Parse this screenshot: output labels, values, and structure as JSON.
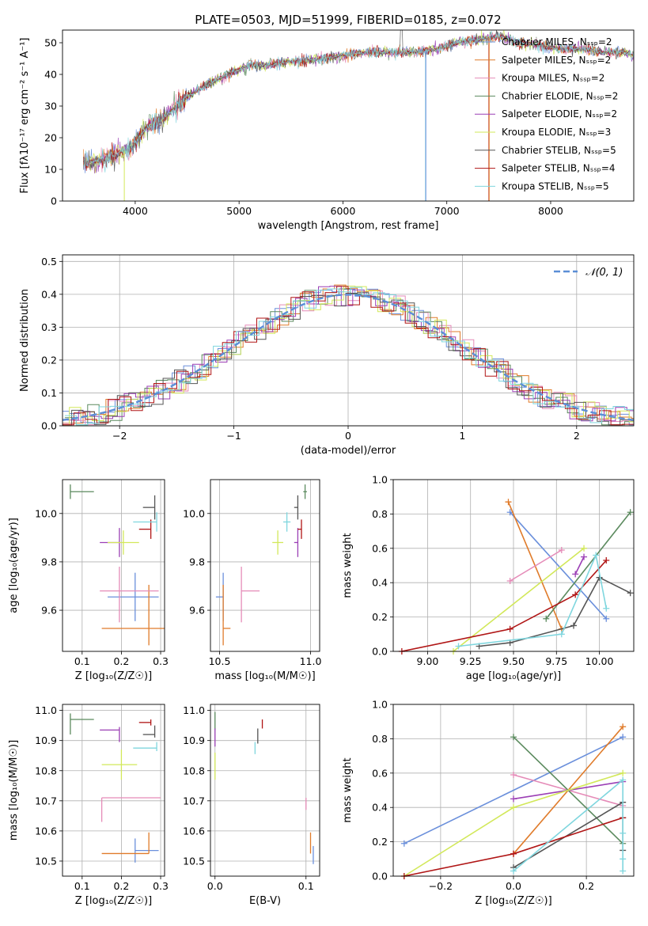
{
  "colors": [
    "#6a8fdb",
    "#e07b2a",
    "#e58bb8",
    "#5b8a5e",
    "#9b3fb5",
    "#d2e85a",
    "#555555",
    "#b01515",
    "#7fd6de"
  ],
  "chart_data": [
    {
      "type": "line",
      "id": "spectrum",
      "title": "PLATE=0503, MJD=51999, FIBERID=0185, z=0.072",
      "xlabel": "wavelength [Angstrom, rest frame]",
      "ylabel": "Flux [fλ10⁻¹⁷ erg cm⁻² s⁻¹ A⁻¹]",
      "xlim": [
        3300,
        8800
      ],
      "ylim": [
        0,
        54
      ],
      "xticks": [
        "4000",
        "5000",
        "6000",
        "7000",
        "8000"
      ],
      "yticks": [
        "0",
        "10",
        "20",
        "30",
        "40",
        "50"
      ],
      "legend": [
        "Chabrier MILES, Nₛₛₚ=2",
        "Salpeter MILES, Nₛₛₚ=2",
        "Kroupa MILES, Nₛₛₚ=2",
        "Chabrier ELODIE, Nₛₛₚ=2",
        "Salpeter ELODIE, Nₛₛₚ=2",
        "Kroupa ELODIE, Nₛₛₚ=3",
        "Chabrier STELIB, Nₛₛₚ=5",
        "Salpeter STELIB, Nₛₛₚ=4",
        "Kroupa STELIB, Nₛₛₚ=5"
      ],
      "continuum": {
        "x": [
          3500,
          3700,
          3900,
          4000,
          4100,
          4300,
          4500,
          4700,
          4900,
          5100,
          5300,
          5500,
          5800,
          6000,
          6200,
          6500,
          6700,
          6900,
          7100,
          7300,
          7500,
          7700,
          7900,
          8100,
          8300,
          8500,
          8700,
          8800
        ],
        "y": [
          12,
          13,
          16,
          18,
          23,
          27,
          33,
          37,
          40,
          43,
          43,
          44,
          45,
          46,
          47,
          47,
          47,
          48,
          50,
          51,
          52,
          50,
          49,
          48,
          48,
          47,
          47,
          46
        ]
      }
    },
    {
      "type": "histogram",
      "id": "residuals",
      "xlabel": "(data-model)/error",
      "ylabel": "Normed distribution",
      "xlim": [
        -2.5,
        2.5
      ],
      "ylim": [
        0,
        0.52
      ],
      "xticks": [
        "−2",
        "−1",
        "0",
        "1",
        "2"
      ],
      "yticks": [
        "0.0",
        "0.1",
        "0.2",
        "0.3",
        "0.4",
        "0.5"
      ],
      "legend": [
        "𝒩(0, 1)"
      ]
    },
    {
      "type": "scatter",
      "id": "age-vs-z",
      "xlabel": "Z [log₁₀(Z/Z☉)]",
      "ylabel": "age  [log₁₀(age/yr)]",
      "xlim": [
        0.05,
        0.31
      ],
      "ylim": [
        9.43,
        10.14
      ],
      "xticks": [
        "0.1",
        "0.2",
        "0.3"
      ],
      "yticks": [
        "9.6",
        "9.8",
        "10.0"
      ],
      "points": [
        {
          "x": 0.235,
          "y": 9.655,
          "xerr": [
            0.07,
            0.06
          ],
          "yerr": [
            0.1,
            0.1
          ]
        },
        {
          "x": 0.27,
          "y": 9.525,
          "xerr": [
            0.12,
            0.05
          ],
          "yerr": [
            0.07,
            0.18
          ]
        },
        {
          "x": 0.195,
          "y": 9.68,
          "xerr": [
            0.05,
            0.1
          ],
          "yerr": [
            0.13,
            0.1
          ]
        },
        {
          "x": 0.07,
          "y": 10.09,
          "xerr": [
            0.0,
            0.06
          ],
          "yerr": [
            0.03,
            0.03
          ]
        },
        {
          "x": 0.195,
          "y": 9.88,
          "xerr": [
            0.05,
            0.0
          ],
          "yerr": [
            0.06,
            0.06
          ]
        },
        {
          "x": 0.205,
          "y": 9.88,
          "xerr": [
            0.04,
            0.04
          ],
          "yerr": [
            0.05,
            0.05
          ]
        },
        {
          "x": 0.285,
          "y": 10.025,
          "xerr": [
            0.03,
            0.0
          ],
          "yerr": [
            0.05,
            0.05
          ]
        },
        {
          "x": 0.275,
          "y": 9.935,
          "xerr": [
            0.03,
            0.0
          ],
          "yerr": [
            0.04,
            0.04
          ]
        },
        {
          "x": 0.29,
          "y": 9.965,
          "xerr": [
            0.06,
            0.0
          ],
          "yerr": [
            0.04,
            0.04
          ]
        }
      ]
    },
    {
      "type": "scatter",
      "id": "age-vs-mass",
      "xlabel": "mass [log₁₀(M/M☉)]",
      "ylabel": "",
      "xlim": [
        10.45,
        11.05
      ],
      "ylim": [
        9.43,
        10.14
      ],
      "xticks": [
        "10.5",
        "11.0"
      ],
      "yticks": [
        "9.6",
        "9.8",
        "10.0"
      ],
      "points": [
        {
          "x": 10.52,
          "y": 9.655,
          "xerr": [
            0.04,
            0.0
          ],
          "yerr": [
            0.1,
            0.1
          ]
        },
        {
          "x": 10.52,
          "y": 9.525,
          "xerr": [
            0.0,
            0.04
          ],
          "yerr": [
            0.07,
            0.18
          ]
        },
        {
          "x": 10.62,
          "y": 9.68,
          "xerr": [
            0.0,
            0.1
          ],
          "yerr": [
            0.13,
            0.1
          ]
        },
        {
          "x": 10.97,
          "y": 10.09,
          "xerr": [
            0.01,
            0.01
          ],
          "yerr": [
            0.03,
            0.03
          ]
        },
        {
          "x": 10.93,
          "y": 9.88,
          "xerr": [
            0.02,
            0.0
          ],
          "yerr": [
            0.06,
            0.06
          ]
        },
        {
          "x": 10.82,
          "y": 9.88,
          "xerr": [
            0.03,
            0.03
          ],
          "yerr": [
            0.05,
            0.05
          ]
        },
        {
          "x": 10.93,
          "y": 10.025,
          "xerr": [
            0.02,
            0.0
          ],
          "yerr": [
            0.05,
            0.05
          ]
        },
        {
          "x": 10.95,
          "y": 9.935,
          "xerr": [
            0.02,
            0.0
          ],
          "yerr": [
            0.04,
            0.04
          ]
        },
        {
          "x": 10.87,
          "y": 9.965,
          "xerr": [
            0.02,
            0.02
          ],
          "yerr": [
            0.04,
            0.04
          ]
        }
      ]
    },
    {
      "type": "line",
      "id": "weight-vs-age",
      "xlabel": "age  [log₁₀(age/yr)]",
      "ylabel": "mass weight",
      "xlim": [
        8.8,
        10.2
      ],
      "ylim": [
        0,
        1
      ],
      "xticks": [
        "9.00",
        "9.25",
        "9.50",
        "9.75",
        "10.00"
      ],
      "yticks": [
        "0.0",
        "0.2",
        "0.4",
        "0.6",
        "0.8",
        "1.0"
      ],
      "series": [
        {
          "x": [
            9.48,
            10.04
          ],
          "y": [
            0.81,
            0.19
          ]
        },
        {
          "x": [
            9.47,
            9.78
          ],
          "y": [
            0.87,
            0.13
          ]
        },
        {
          "x": [
            9.48,
            9.78
          ],
          "y": [
            0.41,
            0.59
          ]
        },
        {
          "x": [
            9.69,
            10.18
          ],
          "y": [
            0.19,
            0.81
          ]
        },
        {
          "x": [
            9.86,
            9.91
          ],
          "y": [
            0.45,
            0.55
          ]
        },
        {
          "x": [
            9.15,
            9.91
          ],
          "y": [
            0.0,
            0.6
          ]
        },
        {
          "x": [
            9.3,
            9.48,
            9.85,
            10.0,
            10.18
          ],
          "y": [
            0.03,
            0.05,
            0.15,
            0.43,
            0.34
          ]
        },
        {
          "x": [
            8.85,
            9.48,
            9.86,
            10.04
          ],
          "y": [
            0.0,
            0.13,
            0.33,
            0.53
          ]
        },
        {
          "x": [
            9.18,
            9.78,
            9.98,
            10.04
          ],
          "y": [
            0.03,
            0.1,
            0.56,
            0.25
          ]
        }
      ]
    },
    {
      "type": "scatter",
      "id": "mass-vs-z",
      "xlabel": "Z [log₁₀(Z/Z☉)]",
      "ylabel": "mass [log₁₀(M/M☉)]",
      "xlim": [
        0.05,
        0.31
      ],
      "ylim": [
        10.45,
        11.02
      ],
      "xticks": [
        "0.1",
        "0.2",
        "0.3"
      ],
      "yticks": [
        "10.5",
        "10.6",
        "10.7",
        "10.8",
        "10.9",
        "11.0"
      ],
      "points": [
        {
          "x": 0.235,
          "y": 10.535,
          "xerr": [
            0.0,
            0.06
          ],
          "yerr": [
            0.04,
            0.04
          ]
        },
        {
          "x": 0.27,
          "y": 10.525,
          "xerr": [
            0.12,
            0.0
          ],
          "yerr": [
            0.0,
            0.07
          ]
        },
        {
          "x": 0.15,
          "y": 10.71,
          "xerr": [
            0.0,
            0.15
          ],
          "yerr": [
            0.08,
            0.0
          ]
        },
        {
          "x": 0.07,
          "y": 10.97,
          "xerr": [
            0.0,
            0.06
          ],
          "yerr": [
            0.05,
            0.02
          ]
        },
        {
          "x": 0.195,
          "y": 10.935,
          "xerr": [
            0.05,
            0.0
          ],
          "yerr": [
            0.04,
            0.01
          ]
        },
        {
          "x": 0.2,
          "y": 10.82,
          "xerr": [
            0.05,
            0.04
          ],
          "yerr": [
            0.05,
            0.05
          ]
        },
        {
          "x": 0.285,
          "y": 10.92,
          "xerr": [
            0.03,
            0.0
          ],
          "yerr": [
            0.01,
            0.03
          ]
        },
        {
          "x": 0.275,
          "y": 10.96,
          "xerr": [
            0.03,
            0.0
          ],
          "yerr": [
            0.01,
            0.01
          ]
        },
        {
          "x": 0.29,
          "y": 10.875,
          "xerr": [
            0.06,
            0.0
          ],
          "yerr": [
            0.01,
            0.02
          ]
        }
      ]
    },
    {
      "type": "scatter",
      "id": "mass-vs-ebv",
      "xlabel": "E(B-V)",
      "ylabel": "",
      "xlim": [
        -0.005,
        0.115
      ],
      "ylim": [
        10.45,
        11.02
      ],
      "xticks": [
        "0.0",
        "0.1"
      ],
      "yticks": [
        "10.5",
        "10.6",
        "10.7",
        "10.8",
        "10.9",
        "11.0"
      ],
      "points": [
        {
          "x": 0.108,
          "y": 10.52,
          "xerr": [
            0,
            0
          ],
          "yerr": [
            0.03,
            0.03
          ]
        },
        {
          "x": 0.105,
          "y": 10.525,
          "xerr": [
            0,
            0
          ],
          "yerr": [
            0.0,
            0.07
          ]
        },
        {
          "x": 0.1,
          "y": 10.71,
          "xerr": [
            0,
            0
          ],
          "yerr": [
            0.04,
            0.0
          ]
        },
        {
          "x": 0.0,
          "y": 10.965,
          "xerr": [
            0,
            0
          ],
          "yerr": [
            0.03,
            0.03
          ]
        },
        {
          "x": 0.0,
          "y": 10.91,
          "xerr": [
            0,
            0
          ],
          "yerr": [
            0.03,
            0.03
          ]
        },
        {
          "x": 0.0,
          "y": 10.82,
          "xerr": [
            0,
            0
          ],
          "yerr": [
            0.05,
            0.04
          ]
        },
        {
          "x": 0.047,
          "y": 10.92,
          "xerr": [
            0,
            0
          ],
          "yerr": [
            0.03,
            0.02
          ]
        },
        {
          "x": 0.052,
          "y": 10.96,
          "xerr": [
            0,
            0
          ],
          "yerr": [
            0.02,
            0.01
          ]
        },
        {
          "x": 0.044,
          "y": 10.875,
          "xerr": [
            0,
            0
          ],
          "yerr": [
            0.02,
            0.02
          ]
        }
      ]
    },
    {
      "type": "line",
      "id": "weight-vs-z",
      "xlabel": "Z [log₁₀(Z/Z☉)]",
      "ylabel": "mass weight",
      "xlim": [
        -0.33,
        0.33
      ],
      "ylim": [
        0,
        1
      ],
      "xticks": [
        "−0.2",
        "0.0",
        "0.2"
      ],
      "yticks": [
        "0.0",
        "0.2",
        "0.4",
        "0.6",
        "0.8",
        "1.0"
      ],
      "series": [
        {
          "x": [
            -0.3,
            0.3
          ],
          "y": [
            0.19,
            0.81
          ]
        },
        {
          "x": [
            0.0,
            0.3
          ],
          "y": [
            0.13,
            0.87
          ]
        },
        {
          "x": [
            0.0,
            0.3
          ],
          "y": [
            0.59,
            0.41
          ]
        },
        {
          "x": [
            0.0,
            0.3
          ],
          "y": [
            0.81,
            0.19
          ]
        },
        {
          "x": [
            0.0,
            0.3
          ],
          "y": [
            0.45,
            0.55
          ]
        },
        {
          "x": [
            -0.3,
            0.0,
            0.3
          ],
          "y": [
            0.0,
            0.4,
            0.6
          ]
        },
        {
          "x": [
            0.0,
            0.3,
            0.3,
            0.3
          ],
          "y": [
            0.05,
            0.43,
            0.15,
            0.34
          ]
        },
        {
          "x": [
            -0.3,
            0.0,
            0.3
          ],
          "y": [
            0.0,
            0.13,
            0.34
          ]
        },
        {
          "x": [
            0.0,
            0.3,
            0.3,
            0.3,
            0.3
          ],
          "y": [
            0.03,
            0.56,
            0.25,
            0.1,
            0.03
          ]
        }
      ]
    }
  ]
}
